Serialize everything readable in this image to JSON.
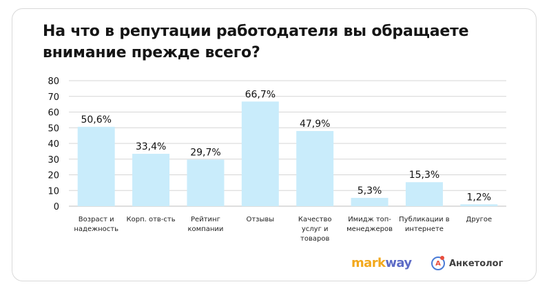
{
  "title": "На что в репутации работодателя вы обращаете внимание прежде всего?",
  "brands": {
    "markway_part1": "mark",
    "markway_part2": "way",
    "anketolog": "Анкетолог",
    "anketolog_mark": "А"
  },
  "colors": {
    "bar": "#c9ecfb",
    "grid": "#d6d6d6",
    "text": "#111111"
  },
  "chart_data": {
    "type": "bar",
    "title": "На что в репутации работодателя вы обращаете внимание прежде всего?",
    "ylim": [
      0,
      80
    ],
    "yticks": [
      0,
      10,
      20,
      30,
      40,
      50,
      60,
      70,
      80
    ],
    "grid": true,
    "categories": [
      [
        "Возраст и",
        "надежность"
      ],
      [
        "Корп. отв-сть"
      ],
      [
        "Рейтинг",
        "компании"
      ],
      [
        "Отзывы"
      ],
      [
        "Качество",
        "услуг и",
        "товаров"
      ],
      [
        "Имидж топ-",
        "менеджеров"
      ],
      [
        "Публикации в",
        "интернете"
      ],
      [
        "Другое"
      ]
    ],
    "values": [
      50.6,
      33.4,
      29.7,
      66.7,
      47.9,
      5.3,
      15.3,
      1.2
    ],
    "value_labels": [
      "50,6%",
      "33,4%",
      "29,7%",
      "66,7%",
      "47,9%",
      "5,3%",
      "15,3%",
      "1,2%"
    ]
  }
}
